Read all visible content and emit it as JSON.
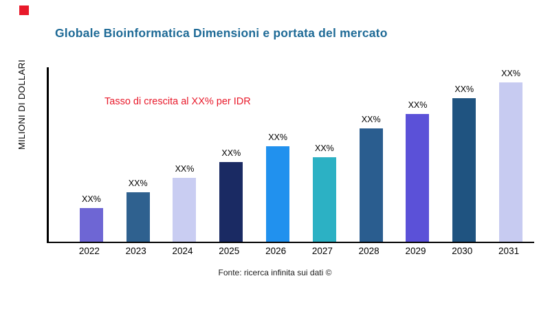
{
  "page": {
    "title": "Globale Bioinformatica Dimensioni e portata del mercato",
    "y_axis_label": "MILIONI DI DOLLARI",
    "annotation": "Tasso di crescita al XX% per IDR",
    "footer": "Fonte: ricerca infinita sui dati ©"
  },
  "colors": {
    "title": "#1e6a96",
    "annotation": "#e8192a",
    "marker": "#e8192a",
    "axis": "#000000"
  },
  "chart_data": {
    "type": "bar",
    "title": "Globale Bioinformatica Dimensioni e portata del mercato",
    "xlabel": "",
    "ylabel": "MILIONI DI DOLLARI",
    "categories": [
      "2022",
      "2023",
      "2024",
      "2025",
      "2026",
      "2027",
      "2028",
      "2029",
      "2030",
      "2031"
    ],
    "values": [
      21,
      31,
      40,
      50,
      60,
      53,
      71,
      80,
      90,
      100
    ],
    "value_note": "relative bar heights (no numeric axis shown); data labels are placeholders",
    "bar_labels": [
      "XX%",
      "XX%",
      "XX%",
      "XX%",
      "XX%",
      "XX%",
      "XX%",
      "XX%",
      "XX%",
      "XX%"
    ],
    "bar_colors": [
      "#6e66d4",
      "#2f618f",
      "#c9cdf2",
      "#1a2a63",
      "#2191ee",
      "#2cb1c4",
      "#2a5d8f",
      "#5b51d8",
      "#1f5380",
      "#c7cbf1"
    ],
    "grid": false,
    "legend": "none",
    "annotation": "Tasso di crescita al XX% per IDR"
  }
}
